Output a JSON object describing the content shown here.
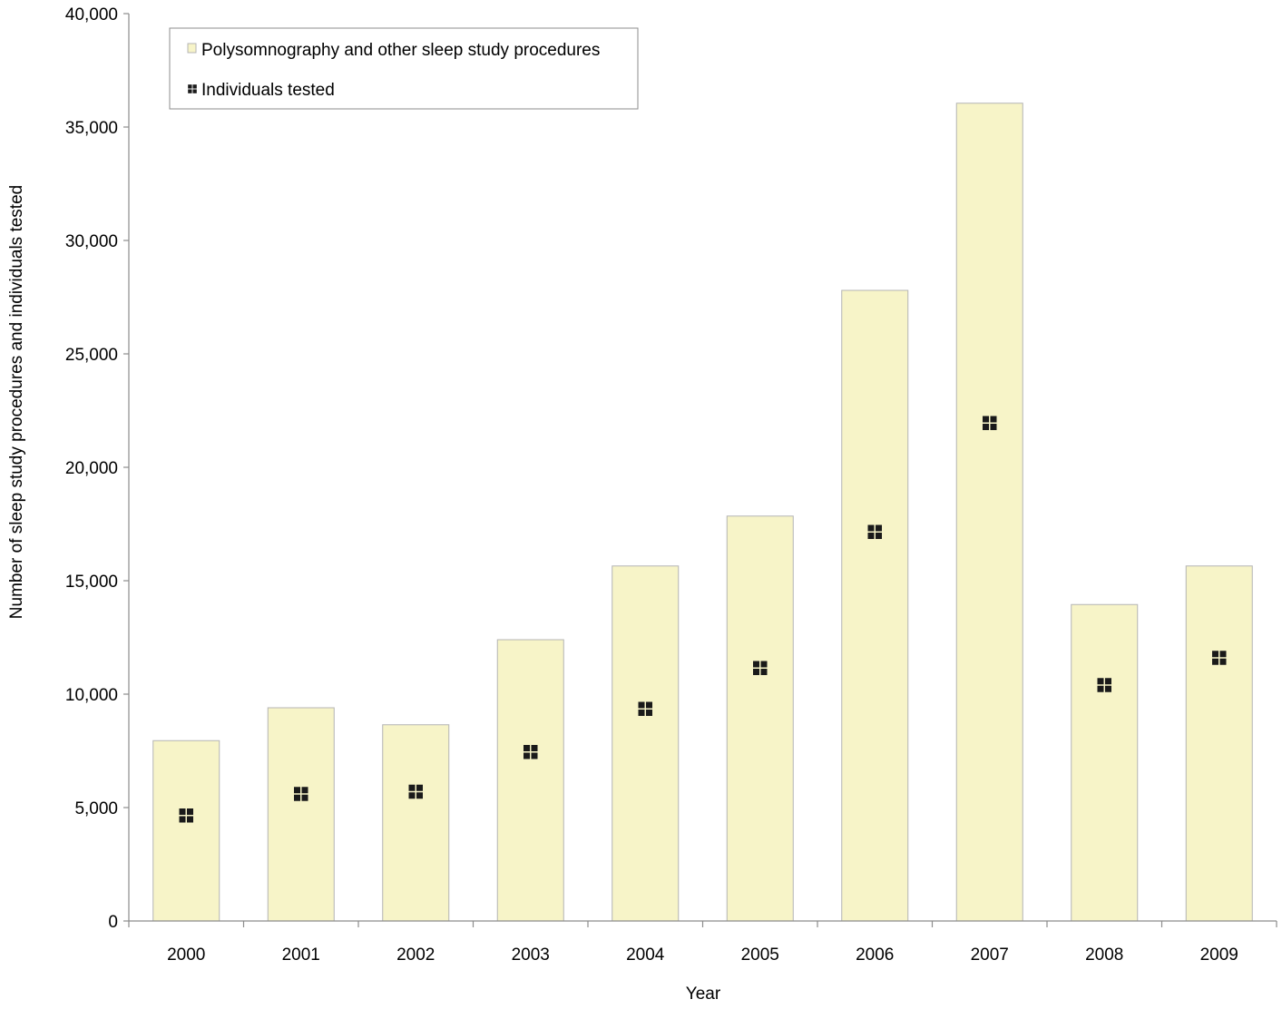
{
  "chart_data": {
    "type": "bar",
    "categories": [
      "2000",
      "2001",
      "2002",
      "2003",
      "2004",
      "2005",
      "2006",
      "2007",
      "2008",
      "2009"
    ],
    "series": [
      {
        "name": "Polysomnography and other sleep study procedures",
        "kind": "bar",
        "values": [
          7950,
          9400,
          8650,
          12400,
          15650,
          17850,
          27800,
          36050,
          13950,
          15650
        ],
        "color": "#f7f4c8",
        "stroke": "#b4b4b4"
      },
      {
        "name": "Individuals tested",
        "kind": "marker",
        "values": [
          4650,
          5600,
          5700,
          7450,
          9350,
          11150,
          17150,
          21950,
          10400,
          11600
        ],
        "color": "#1a1a1a",
        "marker": "four-square"
      }
    ],
    "title": "",
    "xlabel": "Year",
    "ylabel": "Number of sleep study procedures and individuals tested",
    "ylim": [
      0,
      40000
    ],
    "yticks": [
      0,
      5000,
      10000,
      15000,
      20000,
      25000,
      30000,
      35000,
      40000
    ],
    "ytick_labels": [
      "0",
      "5,000",
      "10,000",
      "15,000",
      "20,000",
      "25,000",
      "30,000",
      "35,000",
      "40,000"
    ],
    "grid": false,
    "legend_position": "top-left"
  }
}
